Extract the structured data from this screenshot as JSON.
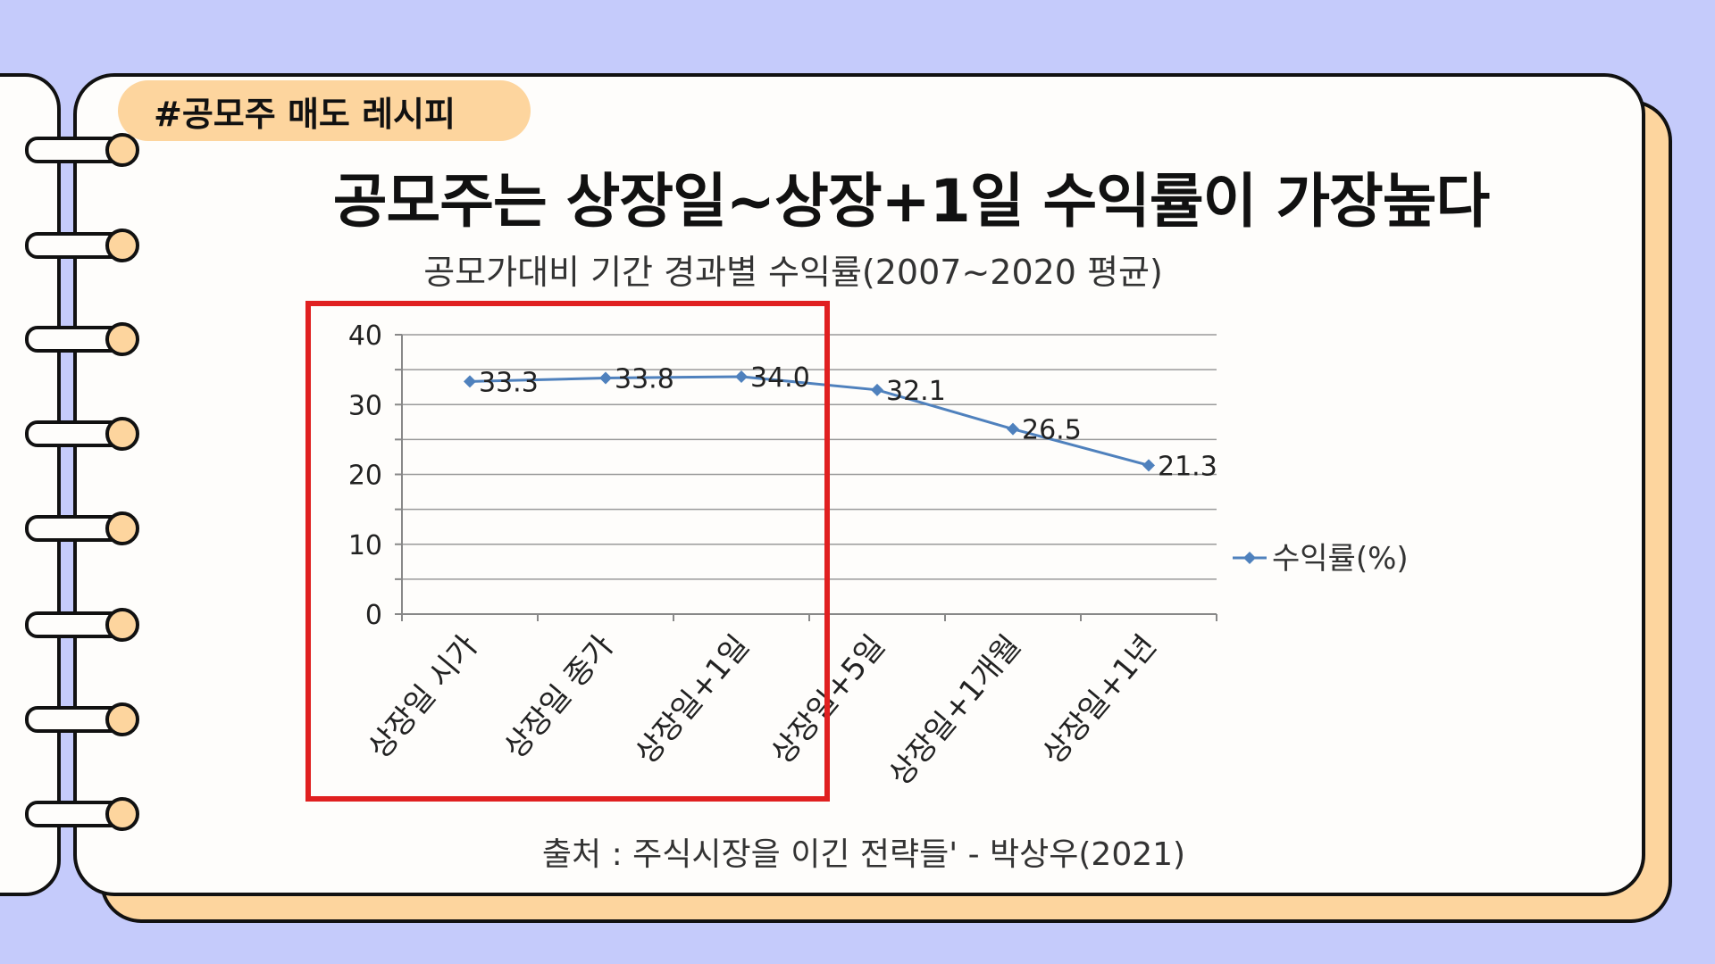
{
  "tag": "#공모주 매도 레시피",
  "headline": "공모주는 상장일~상장+1일 수익률이 가장높다",
  "source_note": "출처 : 주식시장을 이긴 전략들' - 박상우(2021)",
  "colors": {
    "background": "#c5cbfb",
    "card": "#fefdfb",
    "accent": "#fdd59e",
    "series": "#4f81bd",
    "highlight": "#e02020"
  },
  "chart_data": {
    "type": "line",
    "title": "공모가대비 기간 경과별 수익률(2007~2020 평균)",
    "categories": [
      "상장일 시가",
      "상장일 종가",
      "상장일+1일",
      "상장일+5일",
      "상장일+1개월",
      "상장일+1년"
    ],
    "series": [
      {
        "name": "수익률(%)",
        "values": [
          33.3,
          33.8,
          34.0,
          32.1,
          26.5,
          21.3
        ]
      }
    ],
    "data_labels": [
      "33.3",
      "33.8",
      "34.0",
      "32.1",
      "26.5",
      "21.3"
    ],
    "y_ticks": [
      "0",
      "10",
      "20",
      "30",
      "40"
    ],
    "ylim": [
      0,
      40
    ],
    "grid": true,
    "legend": "right",
    "highlight_categories": [
      "상장일 시가",
      "상장일 종가",
      "상장일+1일"
    ]
  }
}
